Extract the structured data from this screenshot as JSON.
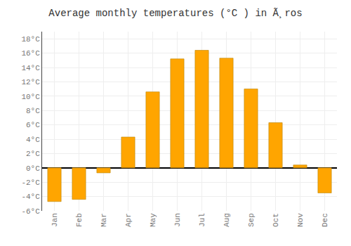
{
  "chart_data": {
    "type": "bar",
    "title": "Average monthly temperatures (°C ) in Ã¸ros",
    "categories": [
      "Jan",
      "Feb",
      "Mar",
      "Apr",
      "May",
      "Jun",
      "Jul",
      "Aug",
      "Sep",
      "Oct",
      "Nov",
      "Dec"
    ],
    "values": [
      -4.7,
      -4.4,
      -0.7,
      4.3,
      10.6,
      15.2,
      16.4,
      15.3,
      11.0,
      6.3,
      0.4,
      -3.5
    ],
    "color": "#FFA500",
    "ylim": [
      -6,
      19
    ],
    "yticks": [
      {
        "value": -6,
        "label": "-6°C"
      },
      {
        "value": -4,
        "label": "-4°C"
      },
      {
        "value": -2,
        "label": "-2°C"
      },
      {
        "value": 0,
        "label": "0°C"
      },
      {
        "value": 2,
        "label": "2°C"
      },
      {
        "value": 4,
        "label": "4°C"
      },
      {
        "value": 6,
        "label": "6°C"
      },
      {
        "value": 8,
        "label": "8°C"
      },
      {
        "value": 10,
        "label": "10°C"
      },
      {
        "value": 12,
        "label": "12°C"
      },
      {
        "value": 14,
        "label": "14°C"
      },
      {
        "value": 16,
        "label": "16°C"
      },
      {
        "value": 18,
        "label": "18°C"
      }
    ],
    "grid": true
  }
}
